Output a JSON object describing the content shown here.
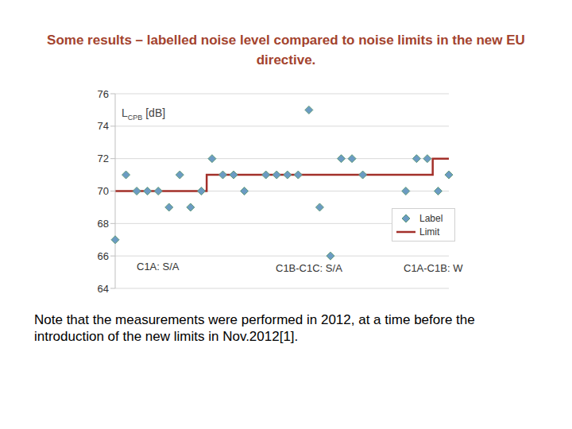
{
  "title": "Some results – labelled noise level compared to noise limits in the new EU directive.",
  "note": "Note that the measurements were performed in 2012, at a time before the introduction of the new limits in Nov.2012[1].",
  "chart_data": {
    "type": "line",
    "categories": [
      null,
      null,
      null,
      null,
      null,
      null,
      null,
      null,
      null,
      null,
      null,
      null,
      null,
      null,
      null,
      null,
      null,
      null,
      null,
      null,
      null,
      null,
      null,
      null,
      null,
      null,
      null,
      null,
      null,
      null,
      null,
      null
    ],
    "y_label": {
      "main": "L",
      "sub": "CPB",
      "unit": "[dB]"
    },
    "annotations": [
      "C1A: S/A",
      "C1B-C1C: S/A",
      "C1A-C1B: W"
    ],
    "series": [
      {
        "name": "Label",
        "color": "#6b9bc3",
        "marker": "diamond",
        "line_style": "none",
        "values": [
          67,
          71,
          70,
          70,
          70,
          69,
          71,
          69,
          70,
          72,
          71,
          71,
          70,
          null,
          71,
          71,
          71,
          71,
          75,
          69,
          66,
          72,
          72,
          71,
          null,
          null,
          null,
          70,
          72,
          72,
          70,
          71
        ]
      },
      {
        "name": "Limit",
        "color": "#a3302a",
        "marker": "none",
        "line_style": "step",
        "values": [
          70,
          70,
          70,
          70,
          70,
          70,
          70,
          70,
          70,
          71,
          71,
          71,
          71,
          71,
          71,
          71,
          71,
          71,
          71,
          71,
          71,
          71,
          71,
          71,
          71,
          71,
          71,
          71,
          71,
          71,
          72,
          72
        ]
      }
    ],
    "ylim": [
      64,
      76
    ],
    "yticks": [
      64,
      66,
      68,
      70,
      72,
      74,
      76
    ],
    "grid": true,
    "legend": "lower right",
    "tick_labels": "y"
  }
}
